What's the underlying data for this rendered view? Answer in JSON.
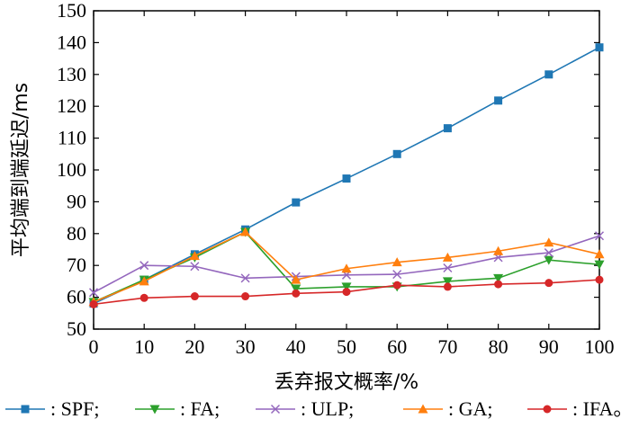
{
  "chart_data": {
    "type": "line",
    "xlabel": "丢弃报文概率/%",
    "ylabel": "平均端到端延迟/ms",
    "xlim": [
      0,
      100
    ],
    "ylim": [
      50,
      150
    ],
    "x_ticks": [
      0,
      10,
      20,
      30,
      40,
      50,
      60,
      70,
      80,
      90,
      100
    ],
    "y_ticks": [
      50,
      60,
      70,
      80,
      90,
      100,
      110,
      120,
      130,
      140,
      150
    ],
    "grid": false,
    "legend_position": "bottom",
    "x": [
      0,
      10,
      20,
      30,
      40,
      50,
      60,
      70,
      80,
      90,
      100
    ],
    "series": [
      {
        "name": "SPF",
        "legend_label": ": SPF;",
        "color": "#1f77b4",
        "marker": "square",
        "values": [
          58,
          65.5,
          73.5,
          81.3,
          89.8,
          97.3,
          105,
          113.1,
          121.8,
          130,
          138.5
        ]
      },
      {
        "name": "FA",
        "legend_label": ": FA;",
        "color": "#2ca02c",
        "marker": "triangle-down",
        "values": [
          58.5,
          65.5,
          72.5,
          80.5,
          62.7,
          63.3,
          63.3,
          65,
          66,
          71.7,
          70.3
        ]
      },
      {
        "name": "ULP",
        "legend_label": ": ULP;",
        "color": "#9467bd",
        "marker": "x",
        "values": [
          61.5,
          70,
          69.7,
          66,
          66.5,
          67,
          67.2,
          69.2,
          72.5,
          74,
          79.3
        ]
      },
      {
        "name": "GA",
        "legend_label": ": GA;",
        "color": "#ff7f0e",
        "marker": "triangle-up",
        "values": [
          58.5,
          65,
          73,
          80.5,
          65.5,
          69,
          71,
          72.5,
          74.5,
          77.2,
          73.5
        ]
      },
      {
        "name": "IFA",
        "legend_label": ": IFA。",
        "color": "#d62728",
        "marker": "circle",
        "values": [
          57.8,
          59.8,
          60.3,
          60.3,
          61.2,
          61.7,
          63.8,
          63.3,
          64.1,
          64.5,
          65.5
        ]
      }
    ]
  }
}
